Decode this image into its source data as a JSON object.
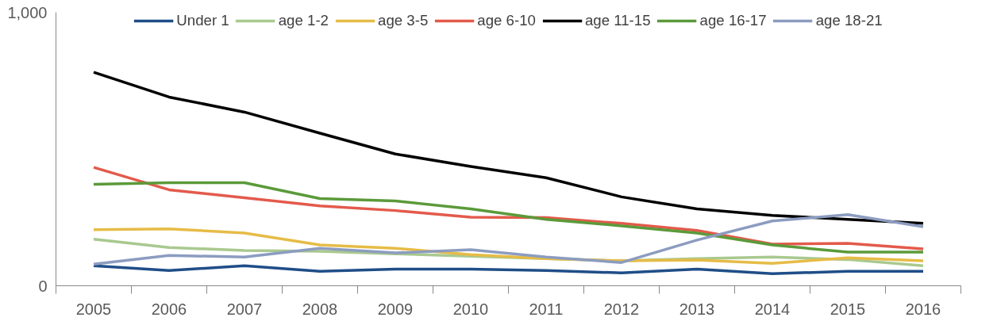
{
  "chart_data": {
    "type": "line",
    "categories": [
      "2005",
      "2006",
      "2007",
      "2008",
      "2009",
      "2010",
      "2011",
      "2012",
      "2013",
      "2014",
      "2015",
      "2016"
    ],
    "ylim": [
      0,
      1000
    ],
    "yticks": [
      0,
      {
        "value": 1000,
        "label": "1,000"
      }
    ],
    "grid": false,
    "legend": "top",
    "marker": "none",
    "line_style": "solid",
    "series": [
      {
        "name": "Under 1",
        "color": "#1f4e88",
        "values": [
          73,
          56,
          73,
          53,
          61,
          61,
          56,
          47,
          61,
          44,
          53,
          53
        ]
      },
      {
        "name": "age 1-2",
        "color": "#a9c98f",
        "values": [
          170,
          140,
          129,
          126,
          117,
          108,
          99,
          91,
          99,
          105,
          96,
          73
        ]
      },
      {
        "name": "age 3-5",
        "color": "#e6bc47",
        "values": [
          205,
          208,
          193,
          149,
          137,
          114,
          99,
          91,
          94,
          82,
          102,
          91
        ]
      },
      {
        "name": "age 6-10",
        "color": "#e35a4b",
        "values": [
          433,
          351,
          322,
          292,
          275,
          251,
          249,
          228,
          202,
          152,
          155,
          135
        ]
      },
      {
        "name": "age 11-15",
        "color": "#000000",
        "values": [
          781,
          690,
          635,
          558,
          482,
          436,
          395,
          325,
          281,
          257,
          243,
          228
        ]
      },
      {
        "name": "age 16-17",
        "color": "#5b9a3a",
        "values": [
          371,
          377,
          377,
          319,
          310,
          281,
          243,
          219,
          193,
          149,
          123,
          123
        ]
      },
      {
        "name": "age 18-21",
        "color": "#8c9cc0",
        "values": [
          79,
          111,
          105,
          137,
          120,
          132,
          105,
          85,
          167,
          237,
          260,
          216
        ]
      }
    ]
  }
}
